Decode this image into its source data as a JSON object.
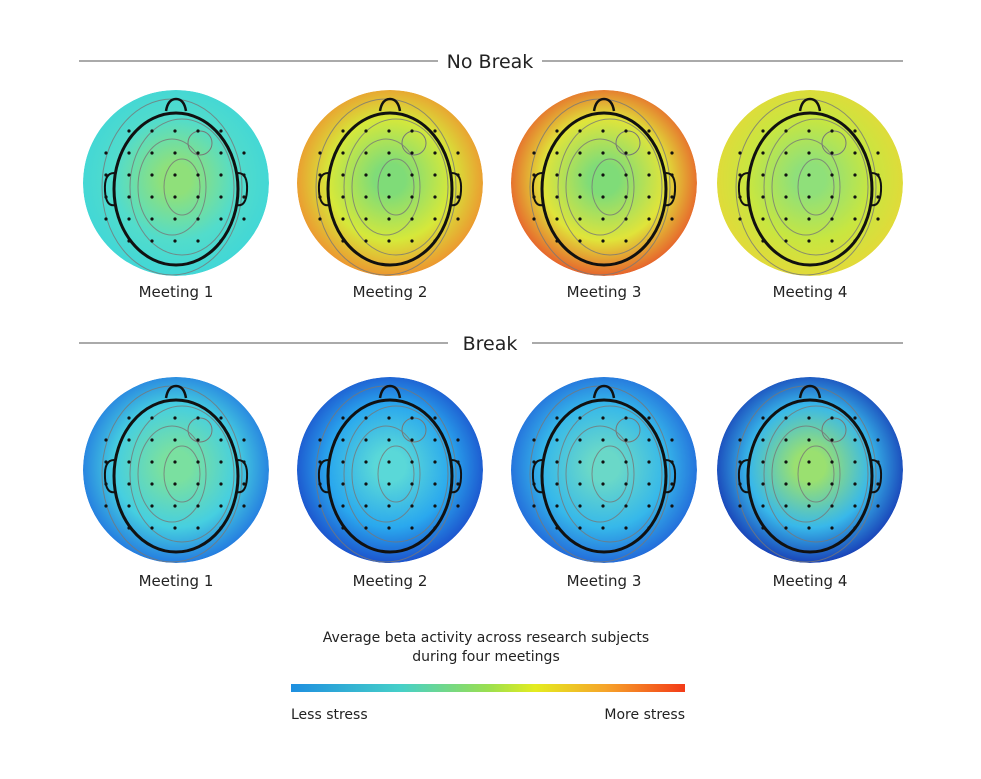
{
  "sections": [
    {
      "title": "No Break",
      "maps": [
        {
          "label": "Meeting 1"
        },
        {
          "label": "Meeting 2"
        },
        {
          "label": "Meeting 3"
        },
        {
          "label": "Meeting 4"
        }
      ]
    },
    {
      "title": "Break",
      "maps": [
        {
          "label": "Meeting 1"
        },
        {
          "label": "Meeting 2"
        },
        {
          "label": "Meeting 3"
        },
        {
          "label": "Meeting 4"
        }
      ]
    }
  ],
  "legend": {
    "title": "Average beta activity across research subjects",
    "subtitle": "during four meetings",
    "low_label": "Less stress",
    "high_label": "More stress"
  }
}
